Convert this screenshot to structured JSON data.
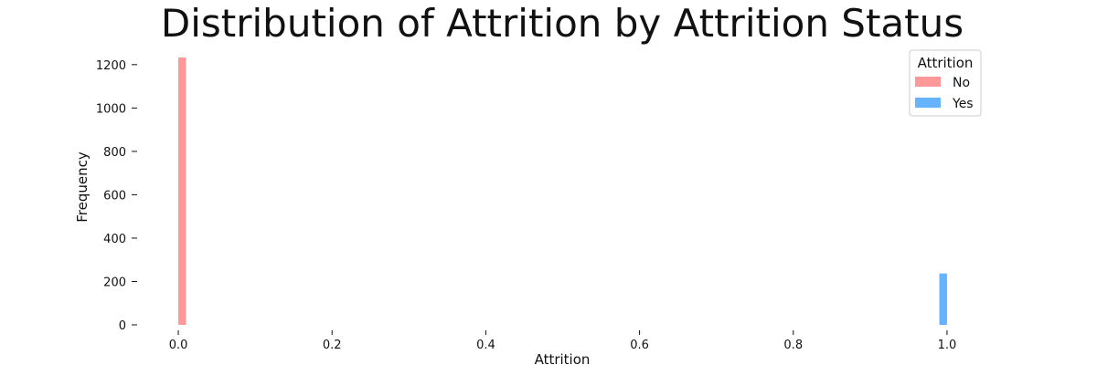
{
  "chart_data": {
    "type": "bar",
    "title": "Distribution of Attrition by Attrition Status",
    "xlabel": "Attrition",
    "ylabel": "Frequency",
    "xlim": [
      -0.05,
      1.05
    ],
    "ylim": [
      0,
      1233
    ],
    "x_ticks": [
      "0.0",
      "0.2",
      "0.4",
      "0.6",
      "0.8",
      "1.0"
    ],
    "x_tick_values": [
      0.0,
      0.2,
      0.4,
      0.6,
      0.8,
      1.0
    ],
    "y_ticks": [
      "0",
      "200",
      "400",
      "600",
      "800",
      "1000",
      "1200"
    ],
    "y_tick_values": [
      0,
      200,
      400,
      600,
      800,
      1000,
      1200
    ],
    "bins": 100,
    "grid": false,
    "legend": {
      "title": "Attrition",
      "placement": "top-right",
      "items": [
        {
          "label": "No",
          "color": "#ff9999"
        },
        {
          "label": "Yes",
          "color": "#66b3ff"
        }
      ]
    },
    "series": [
      {
        "name": "No",
        "color": "#ff9999",
        "bars": [
          {
            "x_start": 0.0,
            "x_end": 0.01,
            "value": 1233
          }
        ]
      },
      {
        "name": "Yes",
        "color": "#66b3ff",
        "bars": [
          {
            "x_start": 0.99,
            "x_end": 1.0,
            "value": 237
          }
        ]
      }
    ]
  }
}
